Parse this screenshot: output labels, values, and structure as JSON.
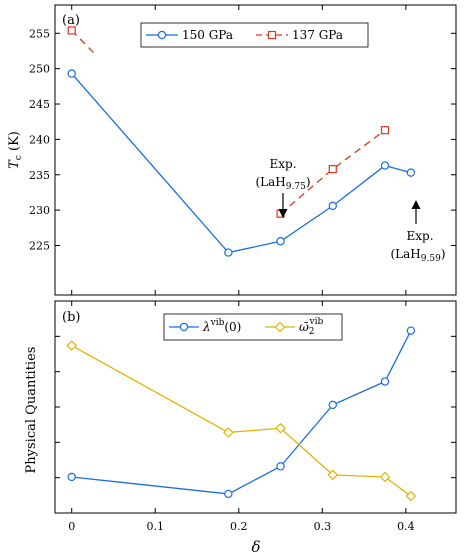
{
  "chart_data": [
    {
      "type": "line",
      "panel_label": "(a)",
      "ylabel": "T_c (K)",
      "ylabel_main": "T",
      "ylabel_sub": "c",
      "ylabel_unit": "(K)",
      "xlim": [
        -0.02,
        0.46
      ],
      "ylim": [
        218,
        259
      ],
      "yticks": [
        225,
        230,
        235,
        240,
        245,
        250,
        255
      ],
      "ytick_labels": [
        "225",
        "230",
        "235",
        "240",
        "245",
        "250",
        "255"
      ],
      "legend_position": "top-center",
      "series": [
        {
          "name": "150 GPa",
          "color": "#1a6fe0",
          "marker": "circle",
          "line": "solid",
          "x": [
            0,
            0.1875,
            0.25,
            0.3125,
            0.375,
            0.406
          ],
          "y": [
            249.3,
            224.0,
            225.6,
            230.6,
            236.3,
            235.3
          ]
        },
        {
          "name": "137 GPa",
          "color": "#d9381e",
          "marker": "square",
          "line": "dashed",
          "segments": [
            {
              "x": [
                0,
                0.03
              ],
              "y": [
                255.4,
                251.8
              ],
              "markers": [
                true,
                false
              ]
            },
            {
              "x": [
                0.25,
                0.3125,
                0.375
              ],
              "y": [
                229.5,
                235.8,
                241.3
              ],
              "markers": [
                true,
                true,
                true
              ]
            }
          ]
        }
      ],
      "annotations": [
        {
          "line1": "Exp.",
          "line2_prefix": "(LaH",
          "line2_sub": "9.75",
          "line2_suffix": ")",
          "arrow_to": [
            0.25,
            229.5
          ]
        },
        {
          "line1": "Exp.",
          "line2_prefix": "(LaH",
          "line2_sub": "9.59",
          "line2_suffix": ")",
          "arrow_to": [
            0.406,
            235.3
          ]
        }
      ]
    },
    {
      "type": "line",
      "panel_label": "(b)",
      "ylabel": "Physical Quantities",
      "xlabel": "δ",
      "xlim": [
        -0.02,
        0.46
      ],
      "ylim": [
        0,
        1
      ],
      "xticks": [
        0,
        0.1,
        0.2,
        0.3,
        0.4
      ],
      "xtick_labels": [
        "0",
        "0.1",
        "0.2",
        "0.3",
        "0.4"
      ],
      "ytick_labels_shown": false,
      "legend_position": "top-center",
      "series": [
        {
          "name": "λ^vib(0)",
          "legend_main": "λ",
          "legend_sup": "vib",
          "legend_tail": "(0)",
          "color": "#1a6fe0",
          "marker": "circle",
          "line": "solid",
          "x": [
            0,
            0.1875,
            0.25,
            0.3125,
            0.375,
            0.406
          ],
          "y": [
            0.17,
            0.09,
            0.22,
            0.51,
            0.62,
            0.86
          ]
        },
        {
          "name": "ω̄_2^vib",
          "legend_main": "ω̄",
          "legend_sub": "2",
          "legend_sup": "vib",
          "color": "#e3b400",
          "marker": "diamond",
          "line": "solid",
          "x": [
            0,
            0.1875,
            0.25,
            0.3125,
            0.375,
            0.406
          ],
          "y": [
            0.79,
            0.38,
            0.4,
            0.18,
            0.17,
            0.08
          ]
        }
      ]
    }
  ]
}
